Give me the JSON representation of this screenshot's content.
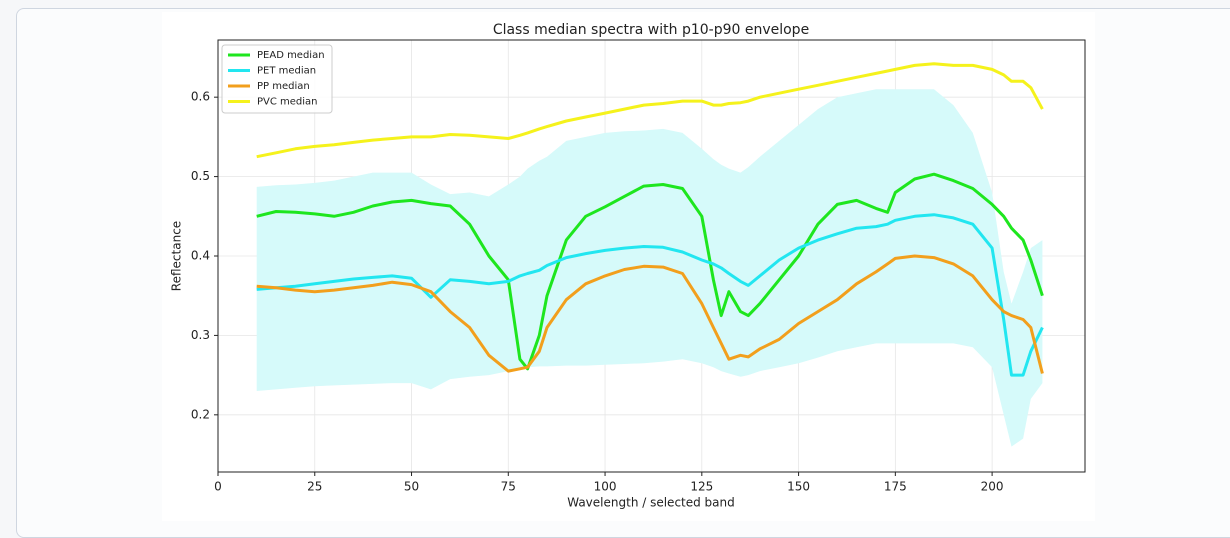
{
  "chart_data": {
    "type": "line",
    "title": "Class median spectra with p10-p90 envelope",
    "xlabel": "Wavelength / selected band",
    "ylabel": "Reflectance",
    "x": [
      10,
      15,
      20,
      25,
      30,
      35,
      40,
      45,
      50,
      55,
      60,
      65,
      70,
      75,
      78,
      80,
      83,
      85,
      90,
      95,
      100,
      105,
      110,
      115,
      120,
      125,
      128,
      130,
      132,
      135,
      137,
      140,
      145,
      150,
      155,
      160,
      165,
      170,
      173,
      175,
      180,
      185,
      190,
      195,
      200,
      203,
      205,
      208,
      210,
      213
    ],
    "xlim": [
      0,
      224
    ],
    "ylim": [
      0.128,
      0.672
    ],
    "xticks": [
      0,
      25,
      50,
      75,
      100,
      125,
      150,
      175,
      200
    ],
    "yticks": [
      0.2,
      0.3,
      0.4,
      0.5,
      0.6
    ],
    "grid": true,
    "legend": "upper left",
    "series": [
      {
        "name": "PEAD median",
        "color": "#1ee61e",
        "values": [
          0.45,
          0.456,
          0.455,
          0.453,
          0.45,
          0.455,
          0.463,
          0.468,
          0.47,
          0.466,
          0.463,
          0.44,
          0.4,
          0.37,
          0.27,
          0.258,
          0.3,
          0.35,
          0.42,
          0.45,
          0.462,
          0.475,
          0.488,
          0.49,
          0.485,
          0.45,
          0.37,
          0.325,
          0.355,
          0.33,
          0.325,
          0.34,
          0.37,
          0.4,
          0.44,
          0.465,
          0.47,
          0.46,
          0.455,
          0.48,
          0.497,
          0.503,
          0.495,
          0.485,
          0.465,
          0.45,
          0.435,
          0.42,
          0.395,
          0.35
        ]
      },
      {
        "name": "PET median",
        "color": "#22e6f0",
        "values": [
          0.358,
          0.36,
          0.362,
          0.365,
          0.368,
          0.371,
          0.373,
          0.375,
          0.372,
          0.348,
          0.37,
          0.368,
          0.365,
          0.368,
          0.375,
          0.378,
          0.382,
          0.388,
          0.398,
          0.403,
          0.407,
          0.41,
          0.412,
          0.411,
          0.405,
          0.395,
          0.39,
          0.385,
          0.378,
          0.368,
          0.363,
          0.375,
          0.395,
          0.41,
          0.42,
          0.428,
          0.435,
          0.437,
          0.44,
          0.445,
          0.45,
          0.452,
          0.448,
          0.44,
          0.41,
          0.32,
          0.25,
          0.25,
          0.28,
          0.31
        ],
        "envelope": {
          "color": "#d6fafa",
          "lower": [
            0.23,
            0.232,
            0.234,
            0.236,
            0.237,
            0.238,
            0.239,
            0.24,
            0.24,
            0.232,
            0.245,
            0.248,
            0.25,
            0.255,
            0.258,
            0.26,
            0.261,
            0.261,
            0.262,
            0.262,
            0.263,
            0.264,
            0.265,
            0.267,
            0.27,
            0.265,
            0.26,
            0.255,
            0.252,
            0.248,
            0.25,
            0.255,
            0.26,
            0.265,
            0.272,
            0.28,
            0.285,
            0.29,
            0.29,
            0.29,
            0.29,
            0.29,
            0.29,
            0.285,
            0.26,
            0.2,
            0.16,
            0.17,
            0.22,
            0.24
          ],
          "upper": [
            0.487,
            0.489,
            0.49,
            0.492,
            0.495,
            0.5,
            0.505,
            0.505,
            0.505,
            0.49,
            0.478,
            0.48,
            0.475,
            0.49,
            0.5,
            0.51,
            0.52,
            0.525,
            0.545,
            0.55,
            0.555,
            0.557,
            0.558,
            0.56,
            0.555,
            0.535,
            0.522,
            0.515,
            0.51,
            0.505,
            0.512,
            0.525,
            0.545,
            0.565,
            0.585,
            0.6,
            0.605,
            0.61,
            0.61,
            0.61,
            0.61,
            0.61,
            0.59,
            0.555,
            0.48,
            0.38,
            0.34,
            0.38,
            0.41,
            0.42
          ]
        }
      },
      {
        "name": "PP median",
        "color": "#f29f1c",
        "values": [
          0.362,
          0.36,
          0.357,
          0.355,
          0.357,
          0.36,
          0.363,
          0.367,
          0.364,
          0.355,
          0.33,
          0.31,
          0.275,
          0.255,
          0.258,
          0.26,
          0.28,
          0.31,
          0.345,
          0.365,
          0.375,
          0.383,
          0.387,
          0.386,
          0.378,
          0.34,
          0.31,
          0.29,
          0.27,
          0.275,
          0.273,
          0.283,
          0.295,
          0.315,
          0.33,
          0.345,
          0.365,
          0.38,
          0.39,
          0.397,
          0.4,
          0.398,
          0.39,
          0.375,
          0.345,
          0.33,
          0.325,
          0.32,
          0.31,
          0.252
        ]
      },
      {
        "name": "PVC median",
        "color": "#f5f21c",
        "values": [
          0.525,
          0.53,
          0.535,
          0.538,
          0.54,
          0.543,
          0.546,
          0.548,
          0.55,
          0.55,
          0.553,
          0.552,
          0.55,
          0.548,
          0.552,
          0.555,
          0.56,
          0.563,
          0.57,
          0.575,
          0.58,
          0.585,
          0.59,
          0.592,
          0.595,
          0.595,
          0.59,
          0.59,
          0.592,
          0.593,
          0.595,
          0.6,
          0.605,
          0.61,
          0.615,
          0.62,
          0.625,
          0.63,
          0.633,
          0.635,
          0.64,
          0.642,
          0.64,
          0.64,
          0.635,
          0.628,
          0.62,
          0.62,
          0.612,
          0.585
        ]
      }
    ]
  }
}
